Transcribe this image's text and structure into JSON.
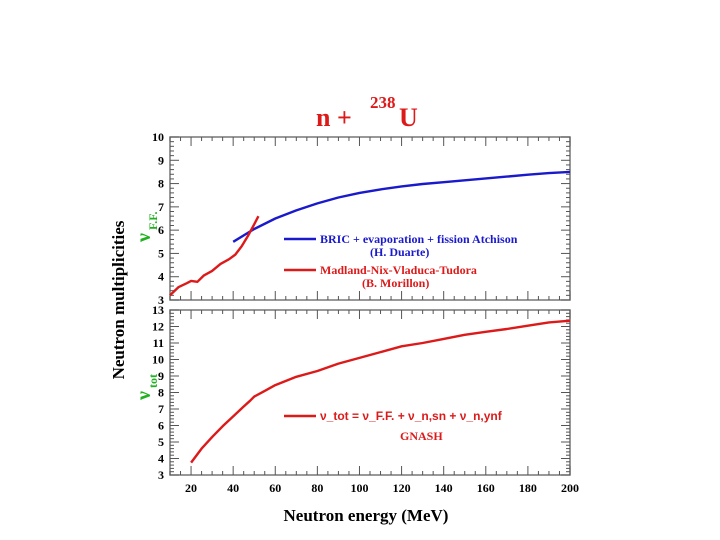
{
  "colors": {
    "blue": "#1a1acc",
    "red": "#dd1a1a",
    "green": "#20b020",
    "frame": "#777777",
    "tick": "#555555",
    "text": "#000000"
  },
  "figure": {
    "title_main": "n +",
    "title_superscript": "238",
    "title_element": "U",
    "ylabel": "Neutron multiplicities",
    "xlabel": "Neutron energy (MeV)"
  },
  "chart_data": [
    {
      "type": "line",
      "panel": "top",
      "ylabel_symbol": "ν",
      "ylabel_subscript": "F.F.",
      "x_ticks": [
        20,
        40,
        60,
        80,
        100,
        120,
        140,
        160,
        180,
        200
      ],
      "xlim": [
        10,
        200
      ],
      "ylim": [
        3,
        10
      ],
      "y_ticks": [
        3,
        4,
        5,
        6,
        7,
        8,
        9,
        10
      ],
      "series": [
        {
          "name": "BRIC + evaporation + fission Atchison",
          "name_line2": "(H. Duarte)",
          "color": "blue",
          "x": [
            40,
            50,
            60,
            70,
            80,
            90,
            100,
            110,
            120,
            130,
            140,
            150,
            160,
            170,
            180,
            190,
            200
          ],
          "y": [
            5.5,
            6.05,
            6.5,
            6.85,
            7.15,
            7.4,
            7.6,
            7.75,
            7.88,
            7.98,
            8.06,
            8.14,
            8.22,
            8.3,
            8.38,
            8.45,
            8.5
          ]
        },
        {
          "name": "Madland-Nix-Vladuca-Tudora",
          "name_line2": "(B. Morillon)",
          "color": "red",
          "x": [
            10,
            14,
            18,
            20,
            23,
            26,
            30,
            34,
            38,
            41,
            44,
            47,
            50,
            52
          ],
          "y": [
            3.2,
            3.55,
            3.72,
            3.82,
            3.78,
            4.05,
            4.25,
            4.55,
            4.75,
            4.95,
            5.3,
            5.75,
            6.25,
            6.6
          ]
        }
      ]
    },
    {
      "type": "line",
      "panel": "bottom",
      "ylabel_symbol": "ν",
      "ylabel_subscript": "tot",
      "xlim": [
        10,
        200
      ],
      "ylim": [
        3,
        13
      ],
      "y_ticks": [
        3,
        4,
        5,
        6,
        7,
        8,
        9,
        10,
        11,
        12,
        13
      ],
      "x_ticks": [
        20,
        40,
        60,
        80,
        100,
        120,
        140,
        160,
        180,
        200
      ],
      "series": [
        {
          "name": "ν_tot = ν_F.F. + ν_n,sn + ν_n,ynf",
          "name_line2": "GNASH",
          "color": "red",
          "x": [
            20,
            25,
            30,
            35,
            40,
            45,
            48,
            50,
            55,
            60,
            70,
            80,
            90,
            100,
            110,
            120,
            130,
            140,
            150,
            160,
            170,
            180,
            190,
            200
          ],
          "y": [
            3.75,
            4.6,
            5.3,
            5.95,
            6.55,
            7.15,
            7.5,
            7.75,
            8.1,
            8.45,
            8.95,
            9.3,
            9.75,
            10.1,
            10.45,
            10.8,
            11.0,
            11.25,
            11.5,
            11.68,
            11.85,
            12.05,
            12.25,
            12.35
          ]
        }
      ]
    }
  ]
}
